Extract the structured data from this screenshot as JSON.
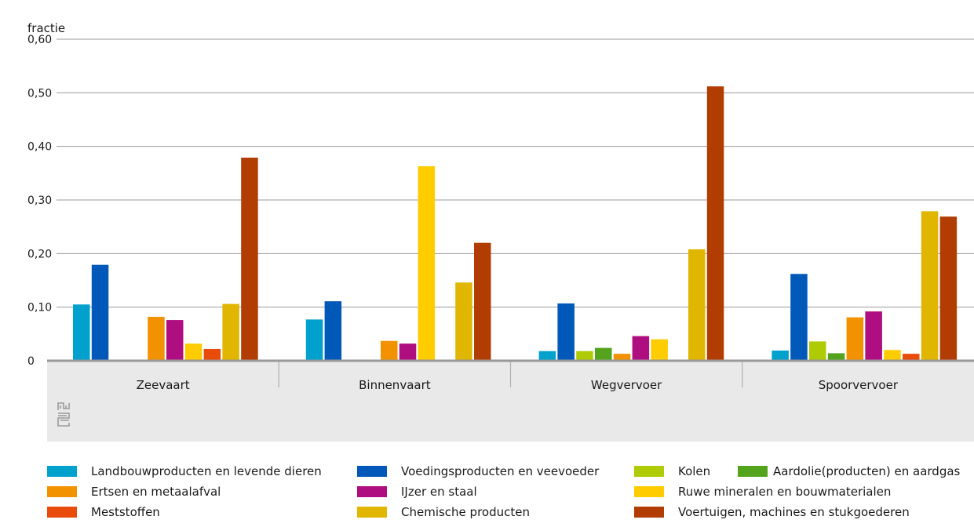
{
  "chart_data": {
    "type": "bar",
    "ylabel": "fractie",
    "ylim": [
      0,
      0.6
    ],
    "yticks": [
      {
        "value": 0,
        "label": "0"
      },
      {
        "value": 0.1,
        "label": "0,10"
      },
      {
        "value": 0.2,
        "label": "0,20"
      },
      {
        "value": 0.3,
        "label": "0,30"
      },
      {
        "value": 0.4,
        "label": "0,40"
      },
      {
        "value": 0.5,
        "label": "0,50"
      },
      {
        "value": 0.6,
        "label": "0,60"
      }
    ],
    "grid": true,
    "legend_position": "bottom",
    "categories": [
      "Zeevaart",
      "Binnenvaart",
      "Wegvervoer",
      "Spoorvervoer"
    ],
    "series": [
      {
        "name": "Landbouwproducten en levende dieren",
        "color": "#00a1cd",
        "values": [
          0.105,
          0.077,
          0.018,
          0.019
        ]
      },
      {
        "name": "Voedingsproducten en veevoeder",
        "color": "#0058b8",
        "values": [
          0.179,
          0.111,
          0.107,
          0.162
        ]
      },
      {
        "name": "Kolen",
        "color": "#afcb05",
        "values": [
          0,
          0,
          0.018,
          0.036
        ]
      },
      {
        "name": "Aardolie(producten) en aardgas",
        "color": "#53a31d",
        "values": [
          0,
          0,
          0.024,
          0.014
        ]
      },
      {
        "name": "Ertsen en metaalafval",
        "color": "#f39200",
        "values": [
          0.082,
          0.037,
          0.013,
          0.081
        ]
      },
      {
        "name": "IJzer en staal",
        "color": "#af0e80",
        "values": [
          0.076,
          0.032,
          0.046,
          0.092
        ]
      },
      {
        "name": "Ruwe mineralen en bouwmaterialen",
        "color": "#ffcc00",
        "values": [
          0.032,
          0.363,
          0.04,
          0.02
        ]
      },
      {
        "name": "Meststoffen",
        "color": "#e94c0a",
        "values": [
          0.022,
          0,
          0,
          0.013
        ]
      },
      {
        "name": "Chemische producten",
        "color": "#e1b600",
        "values": [
          0.106,
          0.146,
          0.208,
          0.279
        ]
      },
      {
        "name": "Voertuigen, machines en stukgoederen",
        "color": "#b23d02",
        "values": [
          0.379,
          0.22,
          0.512,
          0.269
        ]
      }
    ]
  },
  "logo": {
    "icon": "cbs-logo-icon"
  },
  "colors": {
    "panel": "#e9e9e9",
    "grid": "#999999",
    "baseline": "#999999"
  }
}
